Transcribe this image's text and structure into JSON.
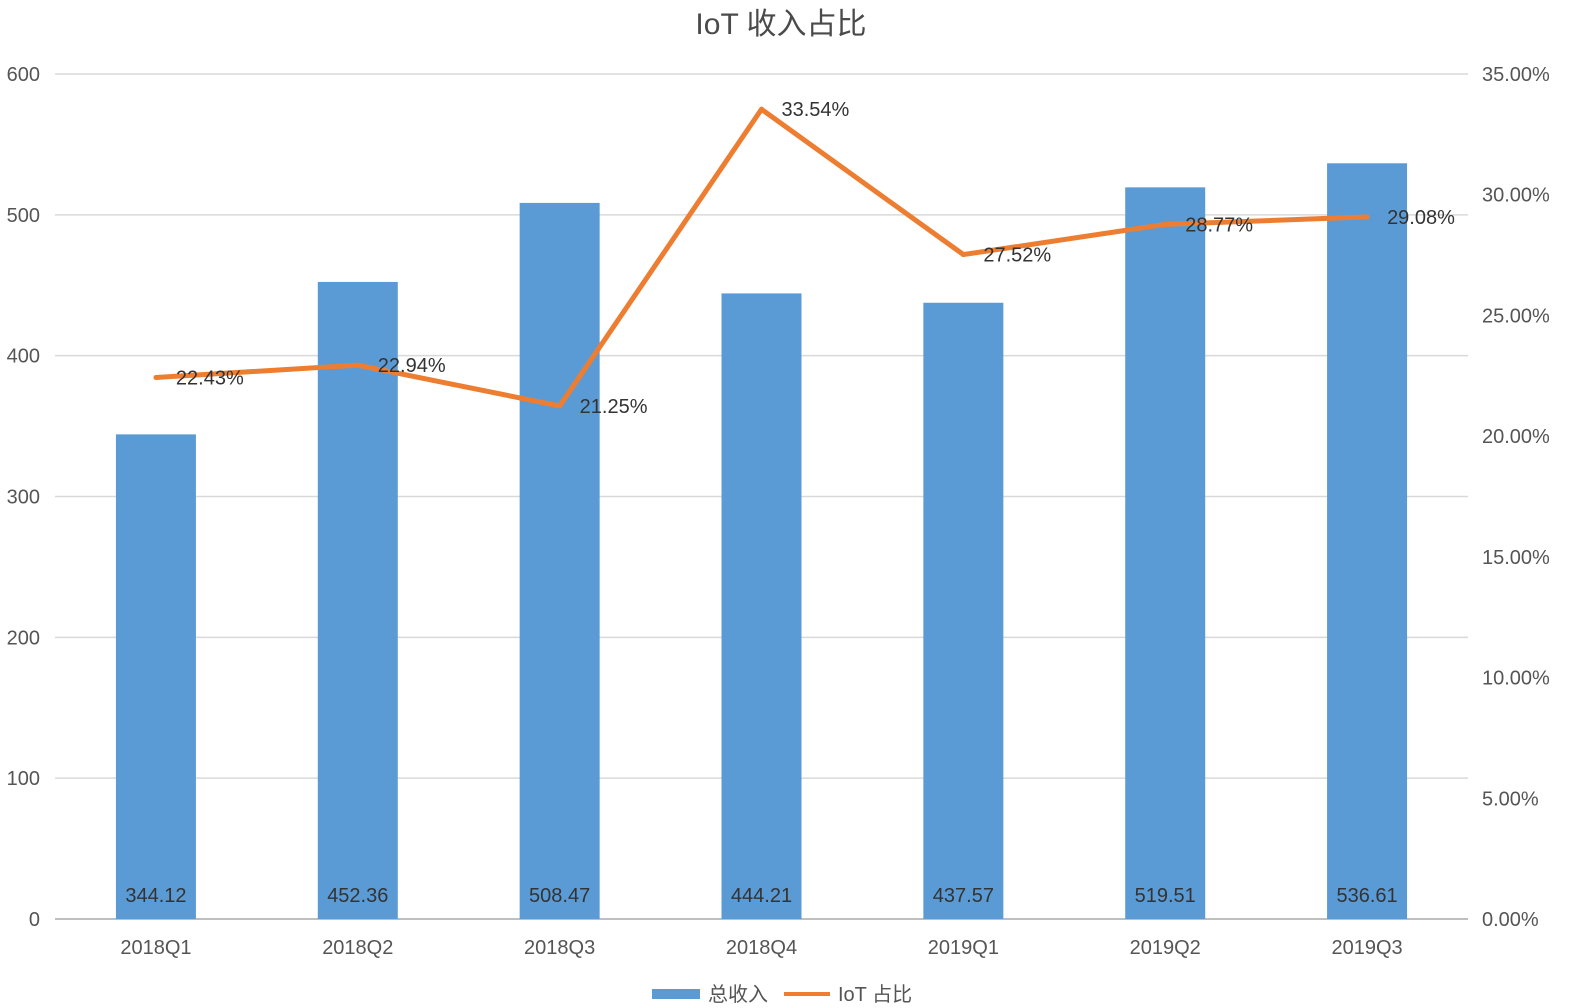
{
  "chart_data": {
    "type": "bar",
    "title": "IoT 收入占比",
    "categories": [
      "2018Q1",
      "2018Q2",
      "2018Q3",
      "2018Q4",
      "2019Q1",
      "2019Q2",
      "2019Q3"
    ],
    "series": [
      {
        "name": "总收入",
        "type": "bar",
        "axis": "left",
        "color": "#5b9bd5",
        "values": [
          344.12,
          452.36,
          508.47,
          444.21,
          437.57,
          519.51,
          536.61
        ],
        "labels": [
          "344.12",
          "452.36",
          "508.47",
          "444.21",
          "437.57",
          "519.51",
          "536.61"
        ]
      },
      {
        "name": "IoT 占比",
        "type": "line",
        "axis": "right",
        "color": "#ed7d31",
        "values": [
          22.43,
          22.94,
          21.25,
          33.54,
          27.52,
          28.77,
          29.08
        ],
        "labels": [
          "22.43%",
          "22.94%",
          "21.25%",
          "33.54%",
          "27.52%",
          "28.77%",
          "29.08%"
        ]
      }
    ],
    "y_left": {
      "min": 0,
      "max": 600,
      "step": 100,
      "ticks": [
        "0",
        "100",
        "200",
        "300",
        "400",
        "500",
        "600"
      ]
    },
    "y_right": {
      "min": 0,
      "max": 35,
      "step": 5,
      "ticks": [
        "0.00%",
        "5.00%",
        "10.00%",
        "15.00%",
        "20.00%",
        "25.00%",
        "30.00%",
        "35.00%"
      ]
    },
    "grid": true,
    "legend": "bottom",
    "colors": {
      "grid": "#d9d9d9",
      "axis": "#bfbfbf"
    }
  }
}
